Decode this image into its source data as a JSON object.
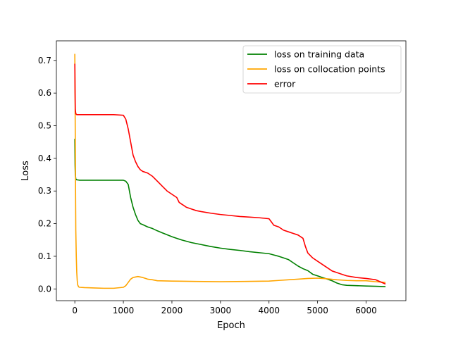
{
  "chart_data": {
    "type": "line",
    "title": "",
    "xlabel": "Epoch",
    "ylabel": "Loss",
    "xlim": [
      -380,
      6820
    ],
    "ylim": [
      -0.036,
      0.76
    ],
    "xticks": [
      0,
      1000,
      2000,
      3000,
      4000,
      5000,
      6000
    ],
    "yticks": [
      0.0,
      0.1,
      0.2,
      0.3,
      0.4,
      0.5,
      0.6,
      0.7
    ],
    "xtick_labels": [
      "0",
      "1000",
      "2000",
      "3000",
      "4000",
      "5000",
      "6000"
    ],
    "ytick_labels": [
      "0.0",
      "0.1",
      "0.2",
      "0.3",
      "0.4",
      "0.5",
      "0.6",
      "0.7"
    ],
    "grid": false,
    "legend": "top-right",
    "series": [
      {
        "name": "loss on training data",
        "color": "#008000",
        "x": [
          0,
          5,
          10,
          20,
          40,
          60,
          100,
          200,
          400,
          600,
          800,
          1000,
          1050,
          1100,
          1150,
          1200,
          1250,
          1300,
          1350,
          1400,
          1500,
          1600,
          1700,
          1800,
          1900,
          2000,
          2100,
          2200,
          2300,
          2400,
          2500,
          2600,
          2700,
          2800,
          3000,
          3200,
          3400,
          3600,
          3800,
          4000,
          4100,
          4200,
          4300,
          4400,
          4500,
          4600,
          4700,
          4800,
          4900,
          5000,
          5100,
          5200,
          5300,
          5400,
          5500,
          5600,
          5800,
          6000,
          6200,
          6400
        ],
        "values": [
          0.46,
          0.38,
          0.35,
          0.337,
          0.334,
          0.334,
          0.333,
          0.333,
          0.333,
          0.333,
          0.333,
          0.333,
          0.33,
          0.32,
          0.28,
          0.25,
          0.228,
          0.21,
          0.2,
          0.197,
          0.19,
          0.185,
          0.178,
          0.172,
          0.166,
          0.16,
          0.155,
          0.15,
          0.146,
          0.142,
          0.139,
          0.136,
          0.133,
          0.13,
          0.125,
          0.121,
          0.118,
          0.114,
          0.111,
          0.108,
          0.104,
          0.1,
          0.095,
          0.09,
          0.08,
          0.07,
          0.062,
          0.056,
          0.045,
          0.04,
          0.035,
          0.03,
          0.025,
          0.018,
          0.013,
          0.011,
          0.01,
          0.009,
          0.008,
          0.007
        ]
      },
      {
        "name": "loss on collocation points",
        "color": "#FFA500",
        "x": [
          0,
          5,
          10,
          15,
          20,
          30,
          40,
          50,
          60,
          80,
          100,
          200,
          400,
          600,
          800,
          1000,
          1050,
          1100,
          1150,
          1200,
          1300,
          1400,
          1500,
          1600,
          1700,
          2000,
          2500,
          3000,
          3500,
          4000,
          4200,
          4400,
          4600,
          4800,
          5000,
          5200,
          5400,
          5600,
          5800,
          6000,
          6200,
          6400
        ],
        "values": [
          0.72,
          0.6,
          0.45,
          0.3,
          0.18,
          0.1,
          0.05,
          0.025,
          0.012,
          0.006,
          0.005,
          0.004,
          0.003,
          0.002,
          0.002,
          0.005,
          0.01,
          0.02,
          0.03,
          0.035,
          0.038,
          0.035,
          0.03,
          0.028,
          0.025,
          0.024,
          0.023,
          0.022,
          0.023,
          0.024,
          0.026,
          0.028,
          0.03,
          0.032,
          0.033,
          0.031,
          0.028,
          0.026,
          0.025,
          0.025,
          0.022,
          0.02
        ]
      },
      {
        "name": "error",
        "color": "#FF0000",
        "x": [
          0,
          5,
          10,
          20,
          40,
          60,
          100,
          200,
          400,
          600,
          800,
          1000,
          1050,
          1100,
          1150,
          1200,
          1250,
          1300,
          1350,
          1400,
          1500,
          1600,
          1700,
          1800,
          1900,
          2000,
          2100,
          2150,
          2200,
          2250,
          2300,
          2400,
          2500,
          2600,
          2800,
          3000,
          3200,
          3400,
          3600,
          3800,
          4000,
          4050,
          4100,
          4200,
          4300,
          4400,
          4500,
          4600,
          4700,
          4750,
          4800,
          4900,
          5000,
          5100,
          5200,
          5300,
          5400,
          5500,
          5600,
          5800,
          6000,
          6200,
          6400
        ],
        "values": [
          0.69,
          0.6,
          0.55,
          0.537,
          0.534,
          0.534,
          0.534,
          0.534,
          0.534,
          0.534,
          0.534,
          0.532,
          0.52,
          0.49,
          0.45,
          0.41,
          0.39,
          0.375,
          0.365,
          0.36,
          0.355,
          0.345,
          0.33,
          0.315,
          0.3,
          0.29,
          0.28,
          0.265,
          0.26,
          0.255,
          0.25,
          0.245,
          0.24,
          0.237,
          0.232,
          0.228,
          0.225,
          0.222,
          0.22,
          0.218,
          0.215,
          0.205,
          0.195,
          0.19,
          0.18,
          0.175,
          0.17,
          0.165,
          0.155,
          0.13,
          0.11,
          0.095,
          0.085,
          0.075,
          0.065,
          0.055,
          0.05,
          0.045,
          0.04,
          0.035,
          0.032,
          0.028,
          0.015
        ]
      }
    ]
  }
}
